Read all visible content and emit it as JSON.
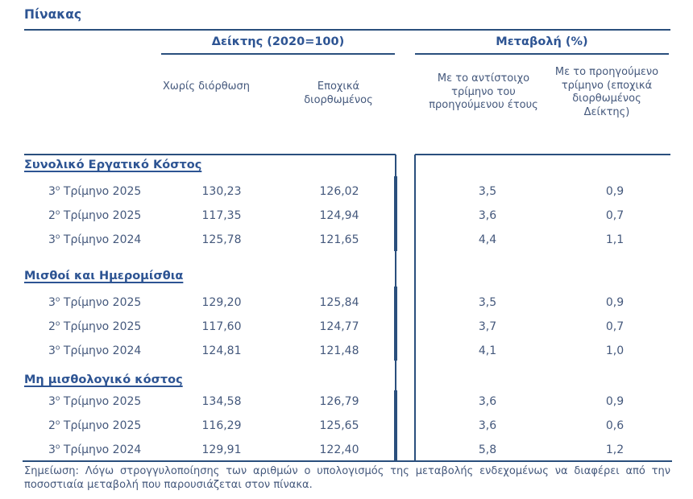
{
  "title": "Πίνακας",
  "colors": {
    "heading": "#2d5493",
    "body": "#44587c",
    "rule": "#2a4f7d"
  },
  "table": {
    "group_headers": [
      "Δείκτης (2020=100)",
      "Μεταβολή (%)"
    ],
    "columns": [
      "Χωρίς διόρθωση",
      "Εποχικά διορθωμένος",
      "Με το αντίστοιχο τρίμηνο του προηγούμενου έτους",
      "Με το προηγούμενο τρίμηνο (εποχικά διορθωμένος Δείκτης)"
    ],
    "sections": [
      {
        "name": "Συνολικό Εργατικό Κόστος",
        "rows": [
          {
            "period": "3ο Τρίμηνο 2025",
            "values": [
              "130,23",
              "126,02",
              "3,5",
              "0,9"
            ]
          },
          {
            "period": "2ο Τρίμηνο 2025",
            "values": [
              "117,35",
              "124,94",
              "3,6",
              "0,7"
            ]
          },
          {
            "period": "3ο Τρίμηνο 2024",
            "values": [
              "125,78",
              "121,65",
              "4,4",
              "1,1"
            ]
          }
        ]
      },
      {
        "name": "Μισθοί και Ημερομίσθια",
        "rows": [
          {
            "period": "3ο Τρίμηνο 2025",
            "values": [
              "129,20",
              "125,84",
              "3,5",
              "0,9"
            ]
          },
          {
            "period": "2ο Τρίμηνο 2025",
            "values": [
              "117,60",
              "124,77",
              "3,7",
              "0,7"
            ]
          },
          {
            "period": "3ο Τρίμηνο 2024",
            "values": [
              "124,81",
              "121,48",
              "4,1",
              "1,0"
            ]
          }
        ]
      },
      {
        "name": "Μη μισθολογικό κόστος",
        "rows": [
          {
            "period": "3ο Τρίμηνο 2025",
            "values": [
              "134,58",
              "126,79",
              "3,6",
              "0,9"
            ]
          },
          {
            "period": "2ο Τρίμηνο 2025",
            "values": [
              "116,29",
              "125,65",
              "3,6",
              "0,6"
            ]
          },
          {
            "period": "3ο Τρίμηνο 2024",
            "values": [
              "129,91",
              "122,40",
              "5,8",
              "1,2"
            ]
          }
        ]
      }
    ]
  },
  "note": "Σημείωση: Λόγω στρογγυλοποίησης των αριθμών ο υπολογισμός της μεταβολής ενδεχομένως να διαφέρει από την ποσοστιαία μεταβολή που παρουσιάζεται στον πίνακα."
}
